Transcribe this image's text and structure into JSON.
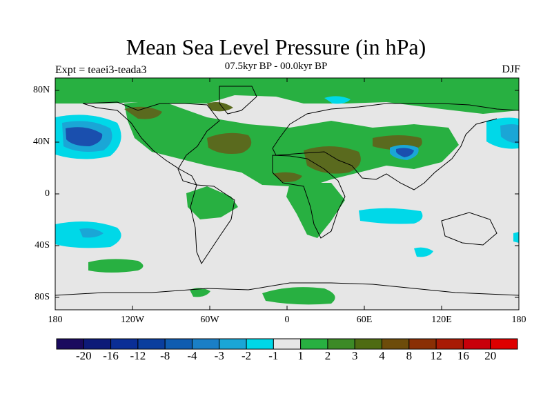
{
  "title": "Mean Sea Level Pressure (in hPa)",
  "subtitle": "07.5kyr BP - 00.0kyr BP",
  "left_label": "Expt = teaei3-teada3",
  "right_label": "DJF",
  "axes": {
    "y_ticks": [
      "80N",
      "40N",
      "0",
      "40S",
      "80S"
    ],
    "x_ticks": [
      "180",
      "120W",
      "60W",
      "0",
      "60E",
      "120E",
      "180"
    ]
  },
  "colorbar": {
    "labels": [
      "-20",
      "-16",
      "-12",
      "-8",
      "-4",
      "-3",
      "-2",
      "-1",
      "1",
      "2",
      "3",
      "4",
      "8",
      "12",
      "16",
      "20"
    ],
    "colors": [
      "#1a0a5e",
      "#0d1a78",
      "#0a2e96",
      "#0a3e9e",
      "#0f5cb0",
      "#1a7fc6",
      "#1aa6d6",
      "#00d8e8",
      "#e6e6e6",
      "#28b041",
      "#3c8a26",
      "#4e6b12",
      "#6d4c0a",
      "#8a2f05",
      "#a81a05",
      "#c8000a",
      "#de0000"
    ]
  },
  "map": {
    "background_color": "#e6e6e6",
    "positive_colors": [
      "#28b041",
      "#3c8a26",
      "#5a6a1e"
    ],
    "negative_colors": [
      "#00d8e8",
      "#1aa6d6",
      "#1a4fae",
      "#0f3c9a"
    ]
  }
}
